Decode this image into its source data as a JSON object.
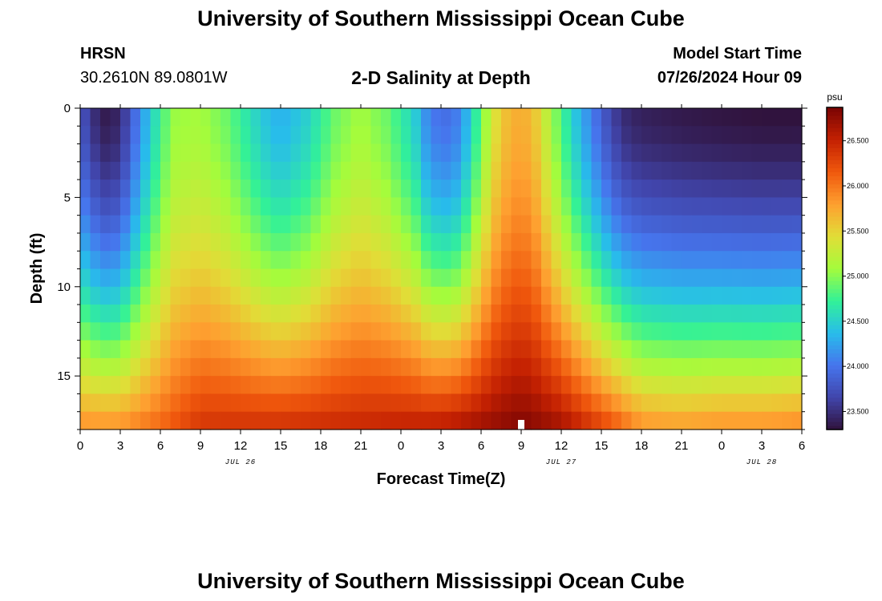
{
  "header": {
    "title": "University of Southern Mississippi Ocean Cube",
    "station": "HRSN",
    "coords": "30.2610N  89.0801W",
    "subtitle": "2-D Salinity at Depth",
    "start_label": "Model Start Time",
    "start_value": "07/26/2024 Hour 09"
  },
  "footer": {
    "title": "University of Southern Mississippi Ocean Cube"
  },
  "chart_data": {
    "type": "heatmap",
    "title": "2-D Salinity at Depth",
    "xlabel": "Forecast Time(Z)",
    "ylabel": "Depth (ft)",
    "x_hours_from_jul26_00z": [
      0,
      54
    ],
    "ylim": [
      0,
      18
    ],
    "y_ticks": [
      0,
      5,
      10,
      15
    ],
    "x_tick_labels": [
      "0",
      "3",
      "6",
      "9",
      "12",
      "15",
      "18",
      "21",
      "0",
      "3",
      "6",
      "9",
      "12",
      "15",
      "18",
      "21",
      "0",
      "3",
      "6"
    ],
    "date_labels": [
      {
        "label": "JUL 26",
        "hour": 12
      },
      {
        "label": "JUL 27",
        "hour": 36
      },
      {
        "label": "JUL 28",
        "hour": 51
      }
    ],
    "colorbar": {
      "unit": "psu",
      "range": [
        23.3,
        26.87
      ],
      "ticks": [
        "23.500",
        "24.000",
        "24.500",
        "25.000",
        "25.500",
        "26.000",
        "26.500"
      ]
    },
    "current_time_marker_hour": 33,
    "surface_profile": [
      {
        "h": 0,
        "v": 23.8
      },
      {
        "h": 1,
        "v": 23.5
      },
      {
        "h": 2,
        "v": 23.35
      },
      {
        "h": 3,
        "v": 23.45
      },
      {
        "h": 4,
        "v": 23.9
      },
      {
        "h": 5,
        "v": 24.35
      },
      {
        "h": 6,
        "v": 24.75
      },
      {
        "h": 7,
        "v": 25.05
      },
      {
        "h": 9,
        "v": 25.1
      },
      {
        "h": 11,
        "v": 24.9
      },
      {
        "h": 13,
        "v": 24.55
      },
      {
        "h": 14,
        "v": 24.4
      },
      {
        "h": 15,
        "v": 24.3
      },
      {
        "h": 17,
        "v": 24.5
      },
      {
        "h": 19,
        "v": 24.9
      },
      {
        "h": 21,
        "v": 25.1
      },
      {
        "h": 23,
        "v": 24.9
      },
      {
        "h": 25,
        "v": 24.5
      },
      {
        "h": 26,
        "v": 24.1
      },
      {
        "h": 27,
        "v": 23.95
      },
      {
        "h": 28,
        "v": 24.0
      },
      {
        "h": 29,
        "v": 24.35
      },
      {
        "h": 30,
        "v": 24.9
      },
      {
        "h": 31,
        "v": 25.4
      },
      {
        "h": 32,
        "v": 25.65
      },
      {
        "h": 33,
        "v": 25.75
      },
      {
        "h": 34,
        "v": 25.6
      },
      {
        "h": 35,
        "v": 25.2
      },
      {
        "h": 36,
        "v": 24.8
      },
      {
        "h": 37,
        "v": 24.45
      },
      {
        "h": 38,
        "v": 24.15
      },
      {
        "h": 39,
        "v": 23.85
      },
      {
        "h": 40,
        "v": 23.6
      },
      {
        "h": 41,
        "v": 23.45
      },
      {
        "h": 42,
        "v": 23.4
      },
      {
        "h": 45,
        "v": 23.35
      },
      {
        "h": 48,
        "v": 23.32
      },
      {
        "h": 51,
        "v": 23.3
      },
      {
        "h": 54,
        "v": 23.3
      }
    ],
    "bottom_profile": [
      {
        "h": 0,
        "v": 25.9
      },
      {
        "h": 3,
        "v": 25.9
      },
      {
        "h": 6,
        "v": 26.1
      },
      {
        "h": 9,
        "v": 26.4
      },
      {
        "h": 15,
        "v": 26.45
      },
      {
        "h": 21,
        "v": 26.5
      },
      {
        "h": 27,
        "v": 26.6
      },
      {
        "h": 33,
        "v": 26.85
      },
      {
        "h": 36,
        "v": 26.7
      },
      {
        "h": 40,
        "v": 26.2
      },
      {
        "h": 42,
        "v": 25.9
      },
      {
        "h": 45,
        "v": 25.85
      },
      {
        "h": 48,
        "v": 25.9
      },
      {
        "h": 51,
        "v": 25.9
      },
      {
        "h": 54,
        "v": 25.95
      }
    ]
  }
}
